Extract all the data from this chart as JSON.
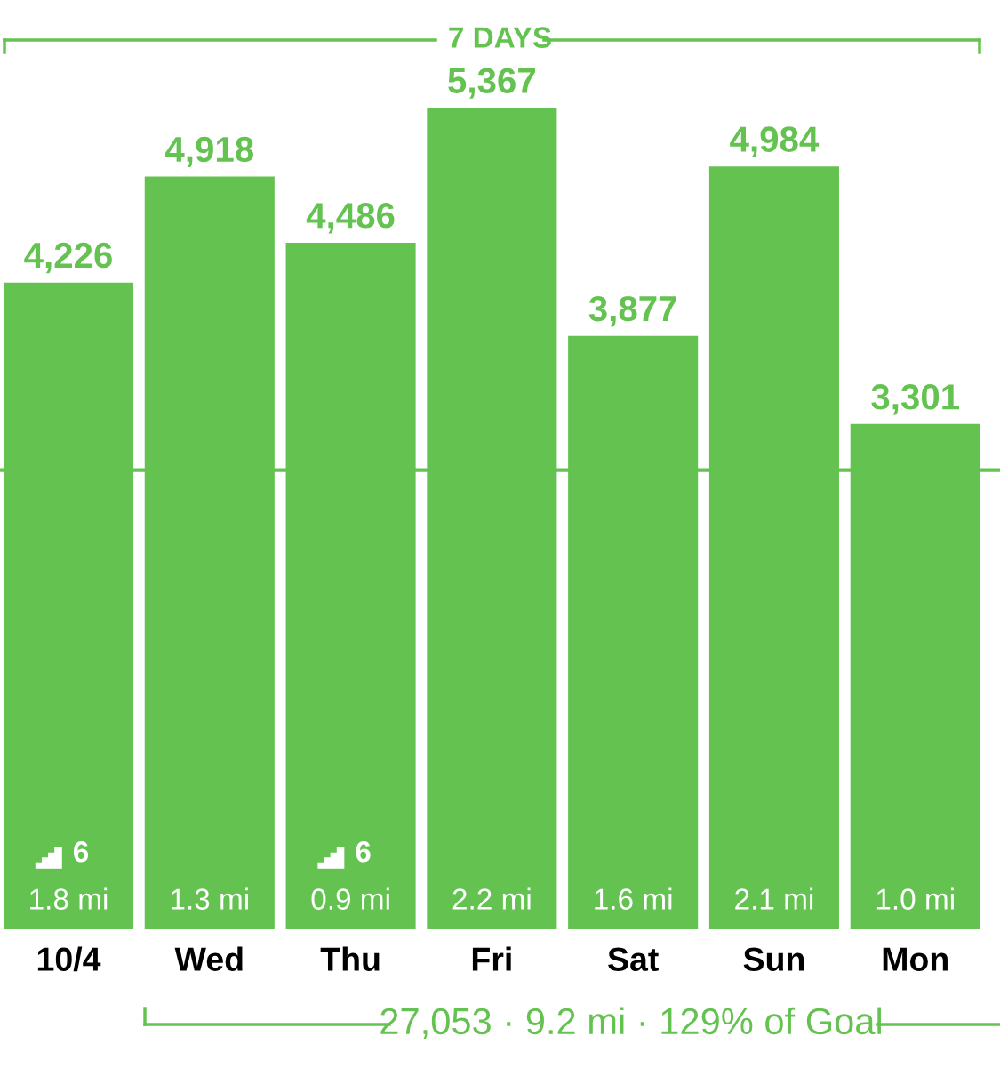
{
  "chart_data": {
    "type": "bar",
    "title": "7 DAYS",
    "categories": [
      "10/4",
      "Wed",
      "Thu",
      "Fri",
      "Sat",
      "Sun",
      "Mon"
    ],
    "values": [
      4226,
      4918,
      4486,
      5367,
      3877,
      4984,
      3301
    ],
    "color": "#64c350",
    "data_labels": true,
    "value_labels": [
      "4,226",
      "4,918",
      "4,486",
      "5,367",
      "3,877",
      "4,984",
      "3,301"
    ],
    "tick_labels": "x",
    "ref_lines": [
      {
        "axis": "y",
        "value": 3000,
        "color": "#64c350"
      }
    ],
    "annotations": [
      "1.8 mi",
      "1.3 mi",
      "0.9 mi",
      "2.2 mi",
      "1.6 mi",
      "2.1 mi",
      "1.0 mi",
      "6",
      "6",
      "27,053 · 9.2 mi · 129% of Goal"
    ]
  }
}
